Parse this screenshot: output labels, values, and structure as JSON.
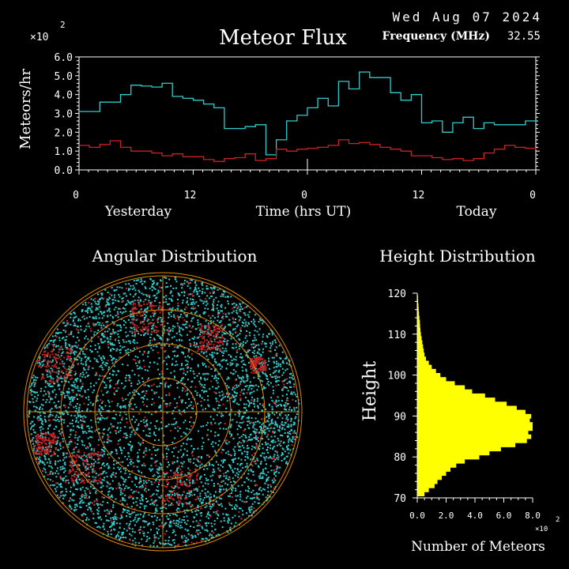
{
  "header": {
    "date": "Wed Aug 07 2024",
    "frequency_label": "Frequency (MHz)",
    "frequency_value": "32.55"
  },
  "colors": {
    "background": "#000000",
    "text": "#ffffff",
    "cyan": "#33cccc",
    "red": "#cc2222",
    "yellow": "#ffff00",
    "grid": "#dd8800"
  },
  "chart_data": [
    {
      "type": "line",
      "title": "Meteor Flux",
      "ylabel": "Meteors/hr",
      "y_multiplier": "×10",
      "y_multiplier_exp": "2",
      "xlabel": "Time (hrs UT)",
      "xlabel_left": "Yesterday",
      "xlabel_right": "Today",
      "xlim": [
        0,
        48
      ],
      "ylim": [
        0,
        6
      ],
      "x_ticks": [
        0,
        12,
        24,
        36,
        48
      ],
      "x_tick_labels": [
        "0",
        "12",
        "0",
        "12",
        "0"
      ],
      "y_ticks": [
        0,
        1,
        2,
        3,
        4,
        5,
        6
      ],
      "y_tick_labels": [
        "0.0",
        "1.0",
        "2.0",
        "3.0",
        "4.0",
        "5.0",
        "6.0"
      ],
      "series": [
        {
          "color": "#33cccc",
          "values": [
            3.1,
            3.1,
            3.6,
            3.6,
            4.0,
            4.5,
            4.45,
            4.4,
            4.6,
            3.9,
            3.8,
            3.7,
            3.5,
            3.3,
            2.2,
            2.2,
            2.3,
            2.4,
            0.8,
            1.6,
            2.6,
            2.9,
            3.3,
            3.8,
            3.4,
            4.7,
            4.3,
            5.2,
            4.9,
            4.9,
            4.1,
            3.7,
            4.0,
            2.5,
            2.6,
            2.0,
            2.5,
            2.8,
            2.2,
            2.5,
            2.4,
            2.4,
            2.4,
            2.6,
            2.5
          ]
        },
        {
          "color": "#cc2222",
          "values": [
            1.3,
            1.2,
            1.35,
            1.55,
            1.2,
            1.0,
            1.0,
            0.9,
            0.75,
            0.85,
            0.7,
            0.7,
            0.55,
            0.45,
            0.6,
            0.65,
            0.85,
            0.5,
            0.6,
            1.1,
            1.0,
            1.1,
            1.15,
            1.2,
            1.3,
            1.6,
            1.4,
            1.45,
            1.35,
            1.2,
            1.1,
            1.0,
            0.75,
            0.75,
            0.65,
            0.55,
            0.6,
            0.5,
            0.6,
            0.9,
            1.1,
            1.3,
            1.2,
            1.15,
            1.1
          ]
        }
      ]
    },
    {
      "type": "scatter",
      "title": "Angular Distribution"
    },
    {
      "type": "bar",
      "orientation": "horizontal",
      "title": "Height Distribution",
      "ylabel": "Height",
      "xlabel": "Number of Meteors",
      "x_multiplier": "×10",
      "x_multiplier_exp": "2",
      "xlim": [
        0,
        8
      ],
      "ylim": [
        70,
        120
      ],
      "x_ticks": [
        0,
        2,
        4,
        6,
        8
      ],
      "x_tick_labels": [
        "0.0",
        "2.0",
        "4.0",
        "6.0",
        "8.0"
      ],
      "y_ticks": [
        70,
        80,
        90,
        100,
        110,
        120
      ],
      "y_tick_labels": [
        "70",
        "80",
        "90",
        "100",
        "110",
        "120"
      ],
      "bin_width": 1,
      "heights": [
        71,
        72,
        73,
        74,
        75,
        76,
        77,
        78,
        79,
        80,
        81,
        82,
        83,
        84,
        85,
        86,
        87,
        88,
        89,
        90,
        91,
        92,
        93,
        94,
        95,
        96,
        97,
        98,
        99,
        100,
        101,
        102,
        103,
        104,
        105,
        106,
        107,
        108,
        109,
        110,
        111,
        112,
        113,
        114,
        115,
        116,
        117,
        118,
        119
      ],
      "counts": [
        0.5,
        0.8,
        1.2,
        1.4,
        1.7,
        2.0,
        2.3,
        2.7,
        3.3,
        4.3,
        5.0,
        5.8,
        6.8,
        7.6,
        7.9,
        7.7,
        8.0,
        8.0,
        7.8,
        7.9,
        7.5,
        6.9,
        6.2,
        5.4,
        4.7,
        3.8,
        3.3,
        2.6,
        2.0,
        1.6,
        1.3,
        1.0,
        0.8,
        0.6,
        0.5,
        0.45,
        0.4,
        0.35,
        0.3,
        0.25,
        0.22,
        0.2,
        0.18,
        0.15,
        0.12,
        0.1,
        0.08,
        0.06,
        0.05
      ]
    }
  ]
}
